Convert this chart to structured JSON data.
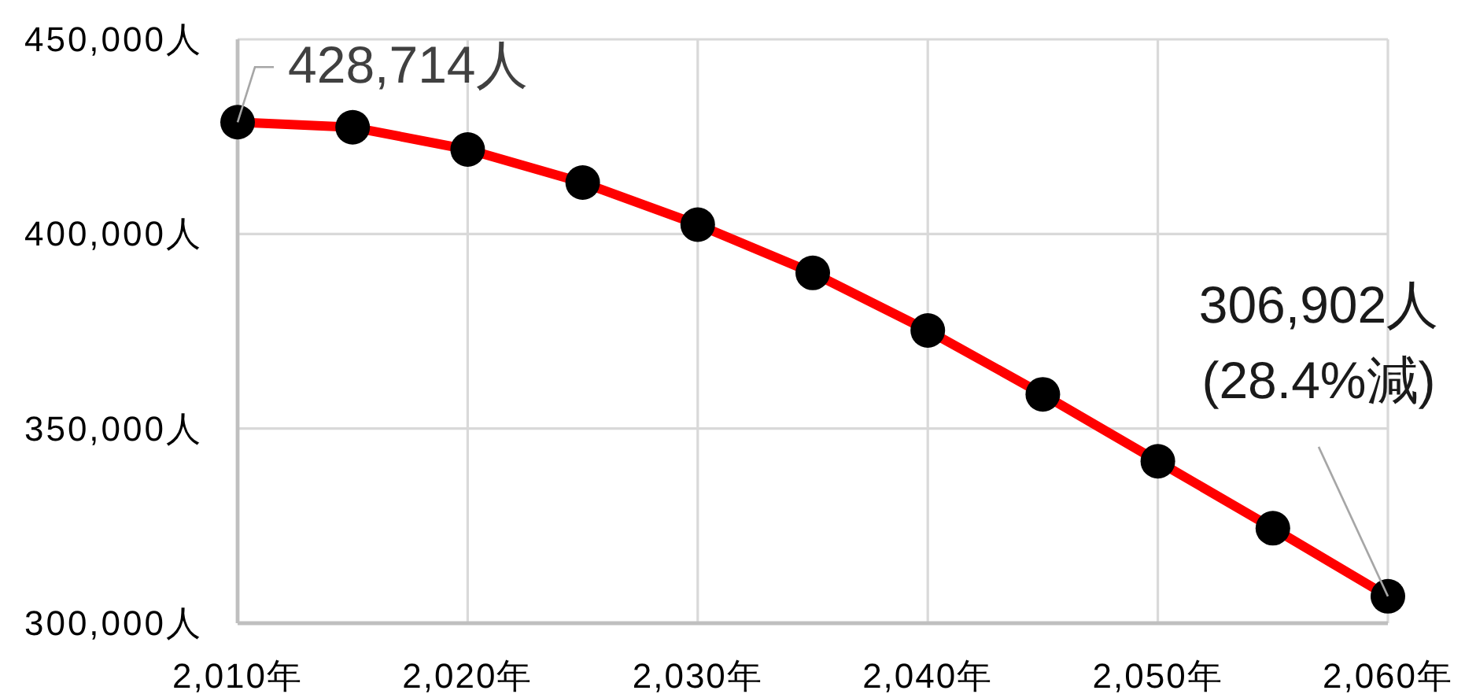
{
  "chart_data": {
    "type": "line",
    "x": [
      2010,
      2015,
      2020,
      2025,
      2030,
      2035,
      2040,
      2045,
      2050,
      2055,
      2060
    ],
    "series": [
      {
        "color": "#ff0000",
        "colors": [
          "#000000",
          "#000000",
          "#000000",
          "#000000",
          "#000000",
          "#000000",
          "#000000",
          "#000000",
          "#000000",
          "#000000",
          "#000000"
        ],
        "values": [
          428714,
          427400,
          421700,
          413200,
          402400,
          390000,
          375200,
          358800,
          341600,
          324400,
          306902
        ]
      }
    ],
    "xlim": [
      2010,
      2060
    ],
    "ylim": [
      300000,
      450000
    ],
    "xticks": [
      {
        "value": 2010,
        "label": "2,010年"
      },
      {
        "value": 2020,
        "label": "2,020年"
      },
      {
        "value": 2030,
        "label": "2,030年"
      },
      {
        "value": 2040,
        "label": "2,040年"
      },
      {
        "value": 2050,
        "label": "2,050年"
      },
      {
        "value": 2060,
        "label": "2,060年"
      }
    ],
    "yticks": [
      {
        "value": 300000,
        "label": "300,000人"
      },
      {
        "value": 350000,
        "label": "350,000人"
      },
      {
        "value": 400000,
        "label": "400,000人"
      },
      {
        "value": 450000,
        "label": "450,000人"
      }
    ],
    "grid": true,
    "marker": "circle",
    "line_style": "solid",
    "annotations": [
      {
        "text": "428,714人",
        "x": 2010,
        "y": 428714
      },
      {
        "text": "306,902人\n(28.4%減)",
        "x": 2060,
        "y": 306902
      }
    ]
  }
}
